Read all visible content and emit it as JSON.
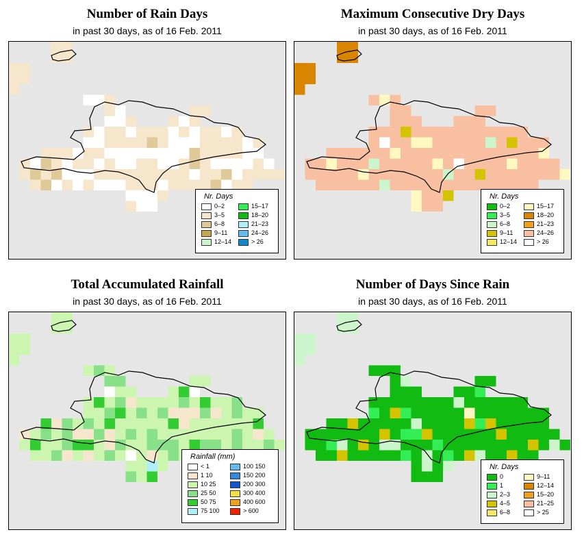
{
  "panels": [
    {
      "id": "rain-days",
      "title": "Number of Rain Days",
      "subtitle": "in past 30 days, as of  16 Feb. 2011",
      "legend": {
        "title": "Nr. Days",
        "items": [
          {
            "label": "0–2",
            "color": "#ffffff"
          },
          {
            "label": "3–5",
            "color": "#f5e6cc"
          },
          {
            "label": "6–8",
            "color": "#e0c998"
          },
          {
            "label": "9–11",
            "color": "#c8a550"
          },
          {
            "label": "12–14",
            "color": "#ccf5cc"
          },
          {
            "label": "15–17",
            "color": "#33ee55"
          },
          {
            "label": "18–20",
            "color": "#11bb11"
          },
          {
            "label": "21–23",
            "color": "#b0eef8"
          },
          {
            "label": "24–26",
            "color": "#66bbee"
          },
          {
            "label": "> 26",
            "color": "#1188cc"
          }
        ]
      }
    },
    {
      "id": "dry-days",
      "title": "Maximum Consecutive Dry Days",
      "subtitle": "in past 30 days, as of  16 Feb. 2011",
      "legend": {
        "title": "Nr. Days",
        "items": [
          {
            "label": "0–2",
            "color": "#11bb11"
          },
          {
            "label": "3–5",
            "color": "#33ee55"
          },
          {
            "label": "6–8",
            "color": "#ccf5cc"
          },
          {
            "label": "9–11",
            "color": "#d4c400"
          },
          {
            "label": "12–14",
            "color": "#f5e866"
          },
          {
            "label": "15–17",
            "color": "#fff8c0"
          },
          {
            "label": "18–20",
            "color": "#d98500"
          },
          {
            "label": "21–23",
            "color": "#f0a020"
          },
          {
            "label": "24–26",
            "color": "#f8c0a0"
          },
          {
            "label": "> 26",
            "color": "#ffffff"
          }
        ]
      }
    },
    {
      "id": "rainfall",
      "title": "Total Accumulated Rainfall",
      "subtitle": "in past 30 days, as of  16 Feb. 2011",
      "legend": {
        "title": "Rainfall (mm)",
        "items": [
          {
            "label": "< 1",
            "color": "#ffffff"
          },
          {
            "label": "1    10",
            "color": "#f5e6cc"
          },
          {
            "label": "10   25",
            "color": "#ccf5b0"
          },
          {
            "label": "25   50",
            "color": "#88e088"
          },
          {
            "label": "50   75",
            "color": "#33cc33"
          },
          {
            "label": "75  100",
            "color": "#b0eef8"
          },
          {
            "label": "100  150",
            "color": "#66bbee"
          },
          {
            "label": "150  200",
            "color": "#3388dd"
          },
          {
            "label": "200  300",
            "color": "#1155cc"
          },
          {
            "label": "300  400",
            "color": "#f5e044"
          },
          {
            "label": "400  600",
            "color": "#f0a020"
          },
          {
            "label": "> 600",
            "color": "#ee2200"
          }
        ]
      }
    },
    {
      "id": "since-rain",
      "title": "Number of Days Since Rain",
      "subtitle": "in past 30 days, as of  16 Feb. 2011",
      "legend": {
        "title": "Nr. Days",
        "items": [
          {
            "label": "0",
            "color": "#11bb11"
          },
          {
            "label": "1",
            "color": "#33ee55"
          },
          {
            "label": "2–3",
            "color": "#ccf5cc"
          },
          {
            "label": "4–5",
            "color": "#d4c400"
          },
          {
            "label": "6–8",
            "color": "#f5e866"
          },
          {
            "label": "9–11",
            "color": "#fff8c0"
          },
          {
            "label": "12–14",
            "color": "#d98500"
          },
          {
            "label": "15–20",
            "color": "#f0a020"
          },
          {
            "label": "21–25",
            "color": "#f8c0a0"
          },
          {
            "label": "> 25",
            "color": "#ffffff"
          }
        ]
      }
    }
  ]
}
